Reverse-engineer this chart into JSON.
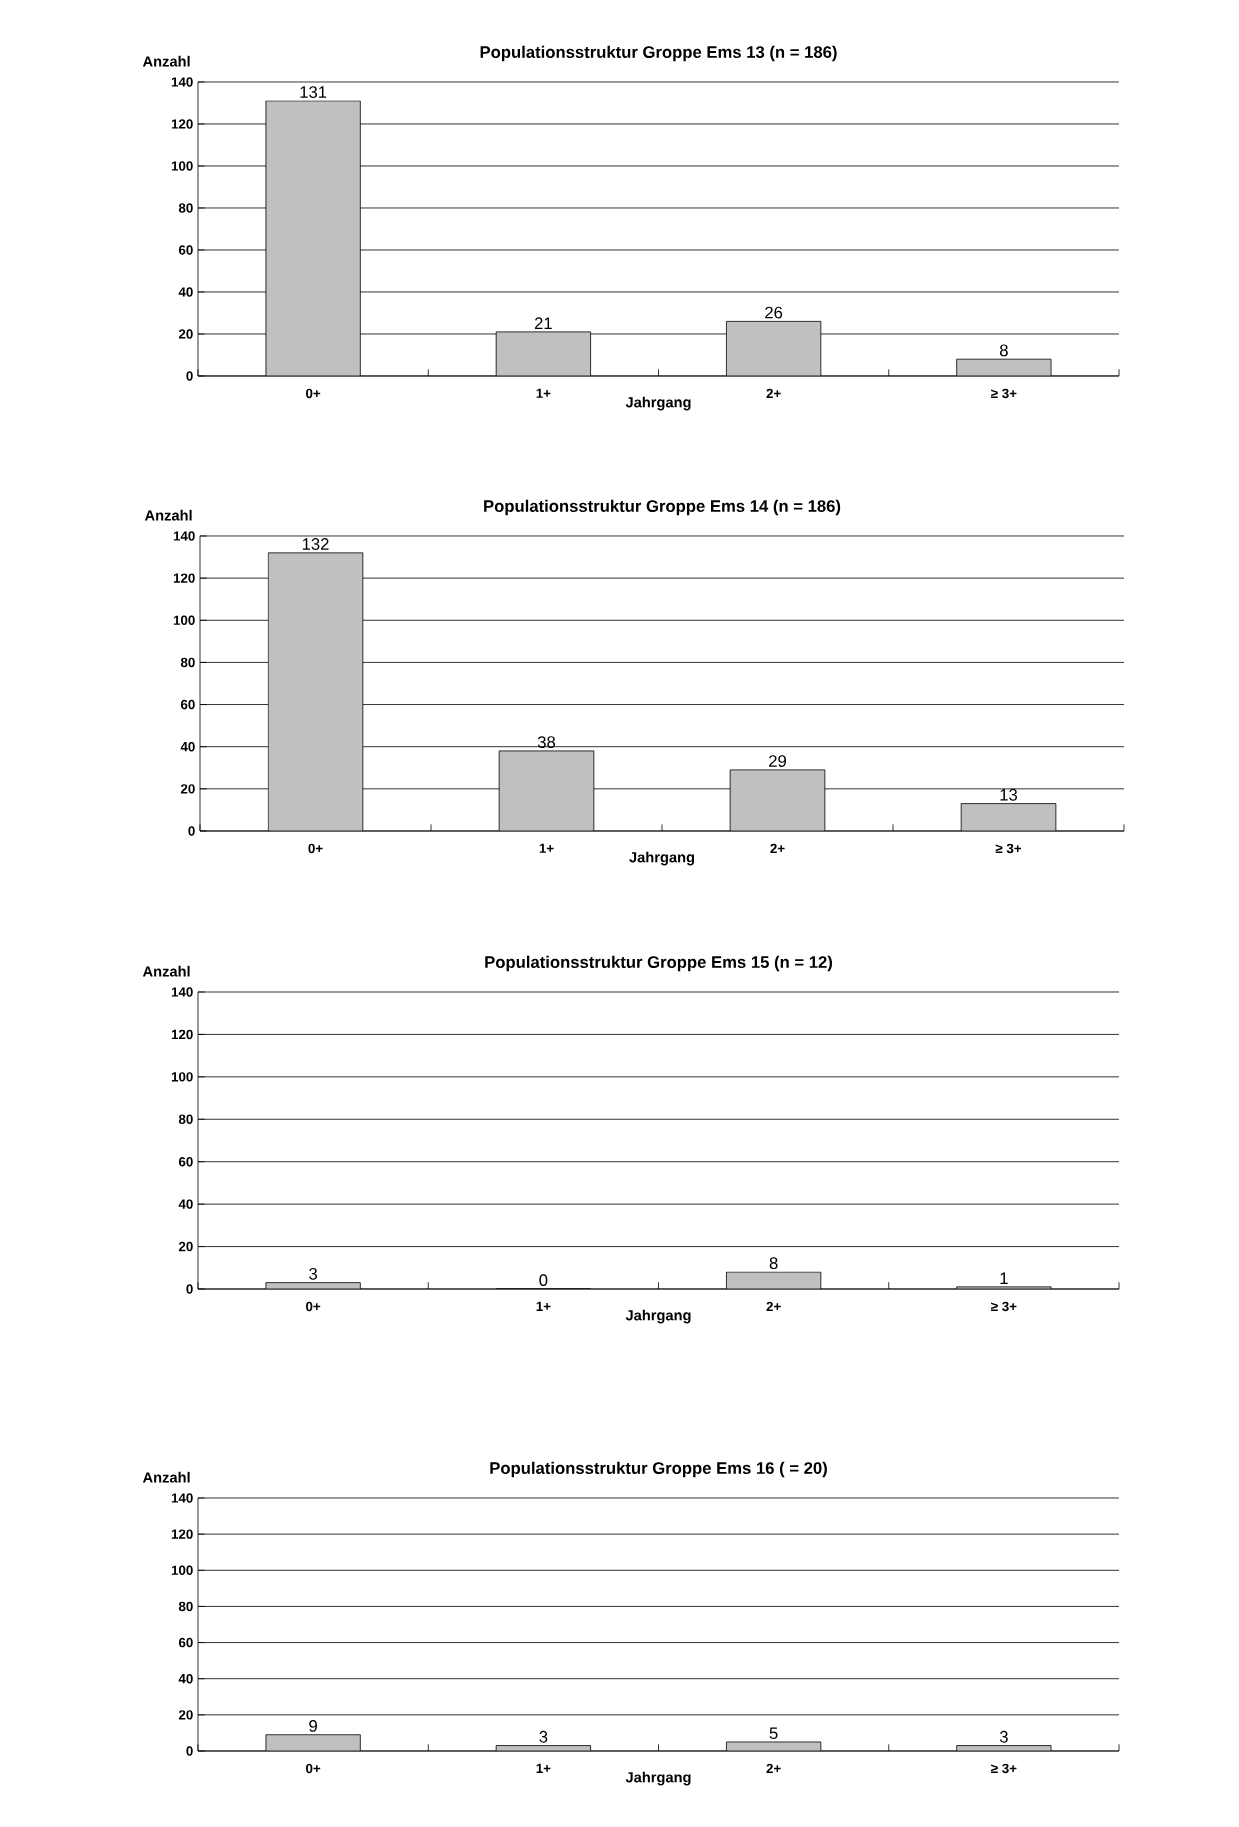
{
  "chart_data": [
    {
      "type": "bar",
      "title": "Populationsstruktur Groppe Ems 13 (n = 186)",
      "xlabel": "Jahrgang",
      "ylabel": "Anzahl",
      "categories": [
        "0+",
        "1+",
        "2+",
        "≥ 3+"
      ],
      "values": [
        131,
        21,
        26,
        8
      ],
      "color": "#c0c0c0",
      "ylim": [
        0,
        140
      ],
      "yticks": [
        0,
        20,
        40,
        60,
        80,
        100,
        120,
        140
      ],
      "grid": "y",
      "data_labels": true
    },
    {
      "type": "bar",
      "title": "Populationsstruktur Groppe Ems 14 (n = 186)",
      "xlabel": "Jahrgang",
      "ylabel": "Anzahl",
      "categories": [
        "0+",
        "1+",
        "2+",
        "≥ 3+"
      ],
      "values": [
        132,
        38,
        29,
        13
      ],
      "color": "#c0c0c0",
      "ylim": [
        0,
        140
      ],
      "yticks": [
        0,
        20,
        40,
        60,
        80,
        100,
        120,
        140
      ],
      "grid": "y",
      "data_labels": true
    },
    {
      "type": "bar",
      "title": "Populationsstruktur Groppe Ems 15 (n = 12)",
      "xlabel": "Jahrgang",
      "ylabel": "Anzahl",
      "categories": [
        "0+",
        "1+",
        "2+",
        "≥ 3+"
      ],
      "values": [
        3,
        0,
        8,
        1
      ],
      "color": "#c0c0c0",
      "ylim": [
        0,
        140
      ],
      "yticks": [
        0,
        20,
        40,
        60,
        80,
        100,
        120,
        140
      ],
      "grid": "y",
      "data_labels": true
    },
    {
      "type": "bar",
      "title": "Populationsstruktur Groppe Ems 16 ( = 20)",
      "xlabel": "Jahrgang",
      "ylabel": "Anzahl",
      "categories": [
        "0+",
        "1+",
        "2+",
        "≥ 3+"
      ],
      "values": [
        9,
        3,
        5,
        3
      ],
      "color": "#c0c0c0",
      "ylim": [
        0,
        140
      ],
      "yticks": [
        0,
        20,
        40,
        60,
        80,
        100,
        120,
        140
      ],
      "grid": "y",
      "data_labels": true
    }
  ]
}
